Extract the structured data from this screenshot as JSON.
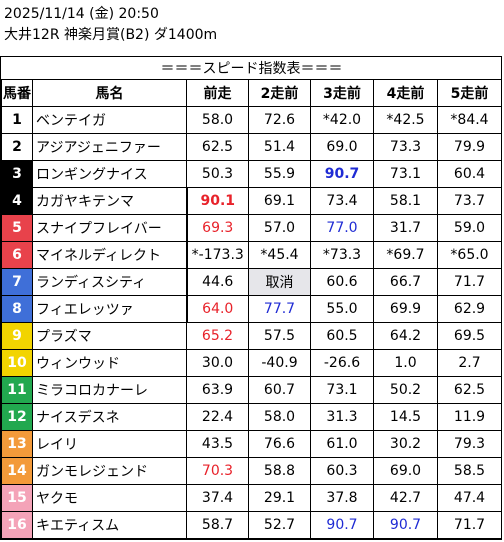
{
  "header": {
    "line1": "2025/11/14 (金) 20:50",
    "line2": "大井12R 神楽月賞(B2) ダ1400m"
  },
  "table": {
    "title": "＝＝＝スピード指数表＝＝＝",
    "columns": [
      "馬番",
      "馬名",
      "前走",
      "2走前",
      "3走前",
      "4走前",
      "5走前"
    ],
    "rows": [
      {
        "num": "1",
        "name": "ベンテイガ",
        "v": [
          "58.0",
          "72.6",
          "*42.0",
          "*42.5",
          "*84.4"
        ]
      },
      {
        "num": "2",
        "name": "アジアジェニファー",
        "v": [
          "62.5",
          "51.4",
          "69.0",
          "73.3",
          "79.9"
        ]
      },
      {
        "num": "3",
        "name": "ロンギングナイス",
        "v": [
          "50.3",
          "55.9",
          "90.7",
          "73.1",
          "60.4"
        ]
      },
      {
        "num": "4",
        "name": "カガヤキテンマ",
        "v": [
          "90.1",
          "69.1",
          "73.4",
          "58.1",
          "73.7"
        ]
      },
      {
        "num": "5",
        "name": "スナイプフレイバー",
        "v": [
          "69.3",
          "57.0",
          "77.0",
          "31.7",
          "59.0"
        ]
      },
      {
        "num": "6",
        "name": "マイネルディレクト",
        "v": [
          "*-173.3",
          "*45.4",
          "*73.3",
          "*69.7",
          "*65.0"
        ]
      },
      {
        "num": "7",
        "name": "ランディスシティ",
        "v": [
          "44.6",
          "取消",
          "60.6",
          "66.7",
          "71.7"
        ]
      },
      {
        "num": "8",
        "name": "フィエレッツァ",
        "v": [
          "64.0",
          "77.7",
          "55.0",
          "69.9",
          "62.9"
        ]
      },
      {
        "num": "9",
        "name": "プラズマ",
        "v": [
          "65.2",
          "57.5",
          "60.5",
          "64.2",
          "69.5"
        ]
      },
      {
        "num": "10",
        "name": "ウィンウッド",
        "v": [
          "30.0",
          "-40.9",
          "-26.6",
          "1.0",
          "2.7"
        ]
      },
      {
        "num": "11",
        "name": "ミラコロカナーレ",
        "v": [
          "63.9",
          "60.7",
          "73.1",
          "50.2",
          "62.5"
        ]
      },
      {
        "num": "12",
        "name": "ナイスデスネ",
        "v": [
          "22.4",
          "58.0",
          "31.3",
          "14.5",
          "11.9"
        ]
      },
      {
        "num": "13",
        "name": "レイリ",
        "v": [
          "43.5",
          "76.6",
          "61.0",
          "30.2",
          "79.3"
        ]
      },
      {
        "num": "14",
        "name": "ガンモレジェンド",
        "v": [
          "70.3",
          "58.8",
          "60.3",
          "69.0",
          "58.5"
        ]
      },
      {
        "num": "15",
        "name": "ヤクモ",
        "v": [
          "37.4",
          "29.1",
          "37.8",
          "42.7",
          "47.4"
        ]
      },
      {
        "num": "16",
        "name": "キエティスム",
        "v": [
          "58.7",
          "52.7",
          "90.7",
          "90.7",
          "71.7"
        ]
      }
    ],
    "colors": {
      "gate1": "#ffffff",
      "gate2": "#000000",
      "gate3": "#e8222a",
      "gate4": "#1f3fd4",
      "gate5": "#f2d400",
      "gate6": "#18a84a",
      "gate7": "#f39a1e",
      "gate8": "#f49ab0",
      "red_text": "#e8222a",
      "blue_text": "#1f2bd4"
    }
  }
}
